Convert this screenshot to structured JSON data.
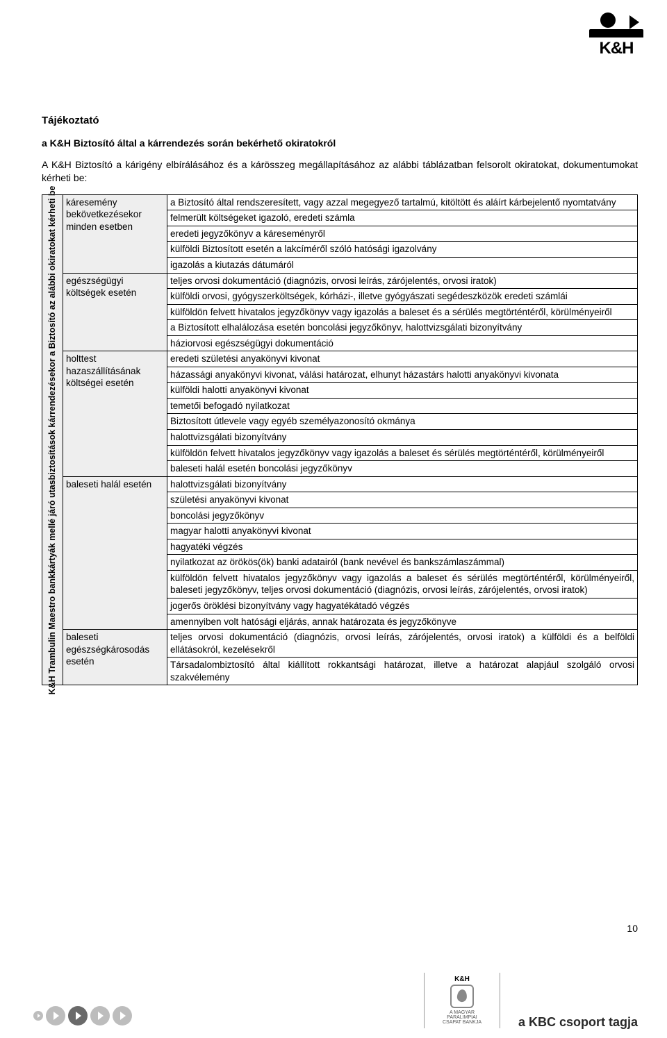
{
  "logo": {
    "brand": "K&H"
  },
  "title": "Tájékoztató",
  "subtitle": "a K&H Biztosító által a kárrendezés során bekérhető okiratokról",
  "intro": "A K&H Biztosító a kárigény elbírálásához és a kárösszeg megállapításához az alábbi táblázatban felsorolt okiratokat, dokumentumokat kérheti be:",
  "side_label": "K&H Trambulin Maestro bankkártyák mellé járó utasbiztosítások kárrendezésekor a Biztosító az alábbi okiratokat kérheti be",
  "categories": [
    {
      "name": "káresemény bekövetkezésekor minden esetben",
      "items": [
        "a Biztosító által rendszeresített, vagy azzal megegyező tartalmú, kitöltött és aláírt kárbejelentő nyomtatvány",
        "felmerült költségeket igazoló, eredeti számla",
        "eredeti jegyzőkönyv a káreseményről",
        "külföldi Biztosított esetén a lakcíméről szóló hatósági igazolvány",
        "igazolás a kiutazás dátumáról"
      ]
    },
    {
      "name": "egészségügyi költségek esetén",
      "items": [
        "teljes orvosi dokumentáció (diagnózis, orvosi leírás, zárójelentés, orvosi iratok)",
        "külföldi orvosi, gyógyszerköltségek, kórházi-, illetve gyógyászati segédeszközök eredeti számlái",
        "külföldön felvett hivatalos jegyzőkönyv vagy igazolás a baleset és a sérülés megtörténtéről, körülményeiről",
        "a Biztosított elhalálozása esetén boncolási jegyzőkönyv, halottvizsgálati bizonyítvány",
        "háziorvosi egészségügyi dokumentáció"
      ]
    },
    {
      "name": "holttest hazaszállításának költségei esetén",
      "items": [
        "eredeti születési anyakönyvi kivonat",
        "házassági anyakönyvi kivonat, válási határozat, elhunyt házastárs halotti anyakönyvi kivonata",
        "külföldi halotti anyakönyvi kivonat",
        "temetői befogadó nyilatkozat",
        "Biztosított útlevele vagy egyéb személyazonosító okmánya",
        "halottvizsgálati bizonyítvány",
        "külföldön felvett hivatalos jegyzőkönyv vagy igazolás a baleset és sérülés megtörténtéről, körülményeiről",
        "baleseti halál esetén boncolási jegyzőkönyv"
      ]
    },
    {
      "name": "baleseti halál esetén",
      "items": [
        "halottvizsgálati bizonyítvány",
        "születési anyakönyvi kivonat",
        "boncolási jegyzőkönyv",
        "magyar halotti anyakönyvi kivonat",
        "hagyatéki végzés",
        "nyilatkozat az örökös(ök) banki adatairól (bank nevével és bankszámlaszámmal)",
        "külföldön felvett hivatalos jegyzőkönyv vagy igazolás a baleset és sérülés megtörténtéről, körülményeiről, baleseti jegyzőkönyv, teljes orvosi dokumentáció (diagnózis, orvosi leírás, zárójelentés, orvosi iratok)",
        "jogerős öröklési bizonyítvány vagy hagyatékátadó végzés",
        "amennyiben volt hatósági eljárás, annak határozata és jegyzőkönyve"
      ]
    },
    {
      "name": "baleseti egészségkárosodás esetén",
      "items": [
        "teljes orvosi dokumentáció (diagnózis, orvosi leírás, zárójelentés, orvosi iratok) a külföldi és a belföldi ellátásokról, kezelésekről",
        "Társadalombiztosító által kiállított rokkantsági határozat, illetve a határozat alapjául szolgáló orvosi szakvélemény"
      ]
    }
  ],
  "page_number": "10",
  "sponsor": {
    "brand": "K&H",
    "line1": "A MAGYAR",
    "line2": "PARALIMPIAI",
    "line3": "CSAPAT BANKJA"
  },
  "footer_tagline": "a KBC csoport tagja",
  "colors": {
    "row_header_bg": "#eeeeee",
    "border": "#000000",
    "text": "#000000",
    "background": "#ffffff"
  },
  "typography": {
    "body_fontsize_pt": 10,
    "title_fontsize_pt": 11,
    "family": "Arial"
  }
}
